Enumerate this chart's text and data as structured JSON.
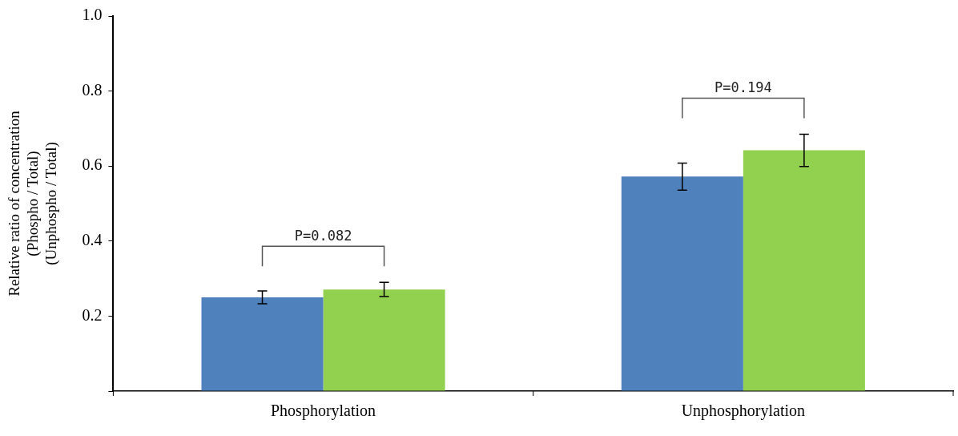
{
  "chart_data": {
    "type": "bar",
    "ylabel": "Relative ratio of concentration\n(Phospho / Total)\n(Unphospho / Total)",
    "categories": [
      "Phosphorylation",
      "Unphosphorylation"
    ],
    "series": [
      {
        "color": "#4f81bd",
        "values": [
          0.25,
          0.572
        ],
        "errors": [
          0.017,
          0.036
        ]
      },
      {
        "color": "#92d050",
        "values": [
          0.271,
          0.642
        ],
        "errors": [
          0.019,
          0.043
        ]
      }
    ],
    "ylim": [
      0,
      1.0
    ],
    "yticks": [
      {
        "value": 0,
        "label": null
      },
      0.2,
      0.4,
      0.6,
      0.8,
      {
        "value": 1.0,
        "label": "1.0"
      }
    ],
    "annotations": [
      "P=0.082",
      "P=0.194"
    ],
    "grid": false,
    "legend": false
  }
}
